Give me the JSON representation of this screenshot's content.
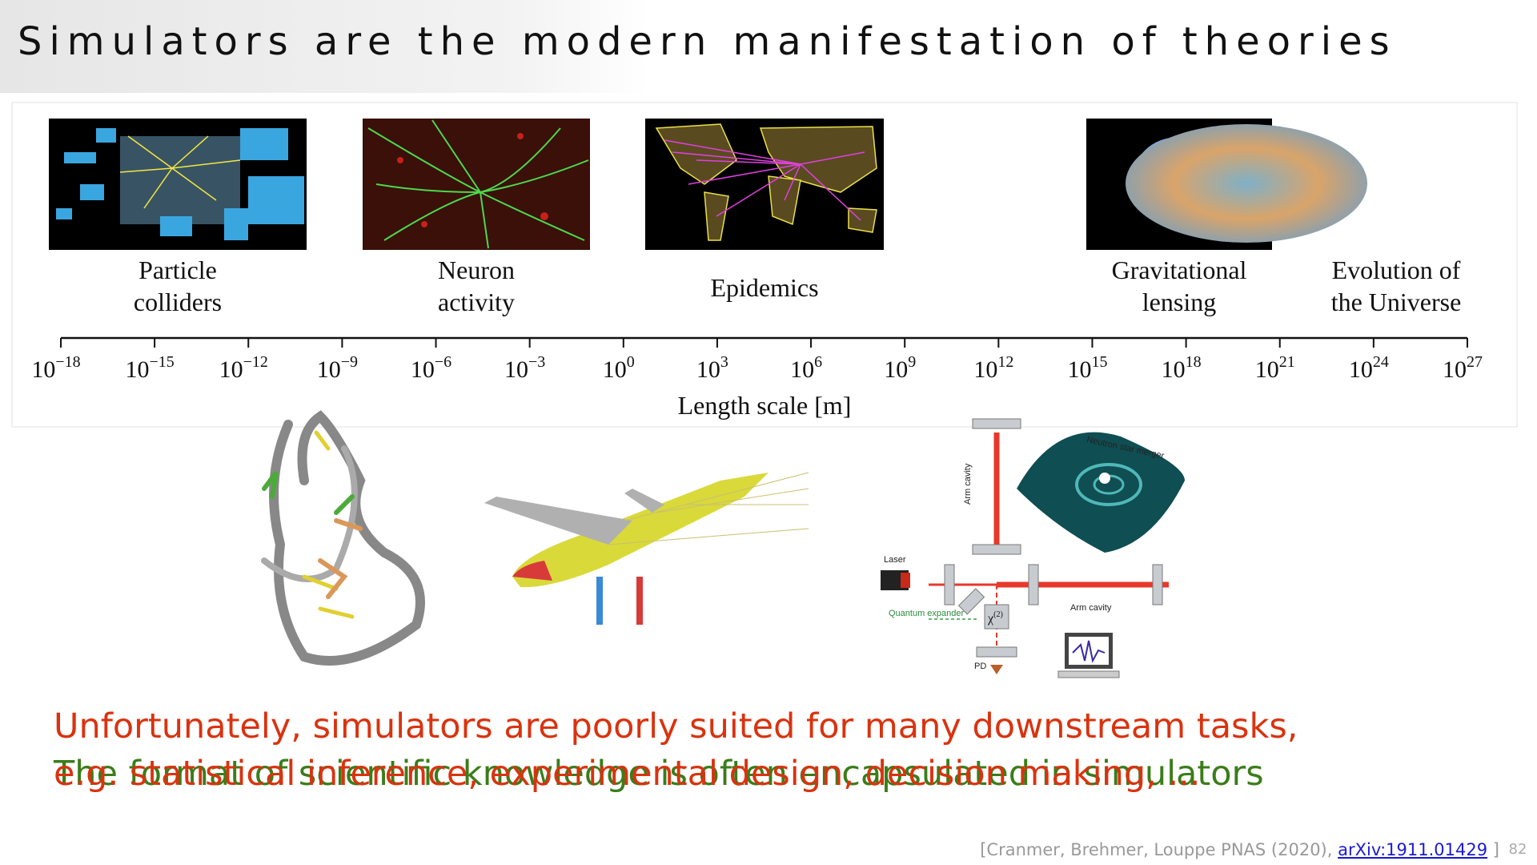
{
  "title": "Simulators are the modern manifestation of theories",
  "timeline": {
    "items": [
      {
        "lines": [
          "Particle",
          "colliders"
        ]
      },
      {
        "lines": [
          "Neuron",
          "activity"
        ]
      },
      {
        "lines": [
          "Epidemics"
        ]
      },
      {
        "lines": [
          "Gravitational",
          "lensing"
        ]
      },
      {
        "lines": [
          "Evolution of",
          "the Universe"
        ]
      }
    ],
    "ticks": [
      {
        "base": "10",
        "exponent": "−18"
      },
      {
        "base": "10",
        "exponent": "−15"
      },
      {
        "base": "10",
        "exponent": "−12"
      },
      {
        "base": "10",
        "exponent": "−9"
      },
      {
        "base": "10",
        "exponent": "−6"
      },
      {
        "base": "10",
        "exponent": "−3"
      },
      {
        "base": "10",
        "exponent": "0"
      },
      {
        "base": "10",
        "exponent": "3"
      },
      {
        "base": "10",
        "exponent": "6"
      },
      {
        "base": "10",
        "exponent": "9"
      },
      {
        "base": "10",
        "exponent": "12"
      },
      {
        "base": "10",
        "exponent": "15"
      },
      {
        "base": "10",
        "exponent": "18"
      },
      {
        "base": "10",
        "exponent": "21"
      },
      {
        "base": "10",
        "exponent": "24"
      },
      {
        "base": "10",
        "exponent": "27"
      }
    ],
    "axis_label": "Length scale [m]"
  },
  "interferometer_labels": {
    "laser": "Laser",
    "arm_cavity_vertical": "Arm cavity",
    "arm_cavity_horizontal": "Arm cavity",
    "merger": "Neutron star merger",
    "expander": "Quantum expander",
    "chi": "χ",
    "chi_sup": "(2)",
    "pd": "PD"
  },
  "overlay_text": {
    "red_lines": [
      "Unfortunately, simulators are poorly suited for many downstream tasks,",
      "e.g. statistical inference, experimental design, decision making, ..."
    ],
    "green_line": "The format of scientific knowledge is often encapsulated in simulators"
  },
  "citation": {
    "prefix": "[Cranmer, Brehmer, Louppe PNAS (2020), ",
    "link": "arXiv:1911.01429",
    "suffix": " ]"
  },
  "page_number": "82"
}
